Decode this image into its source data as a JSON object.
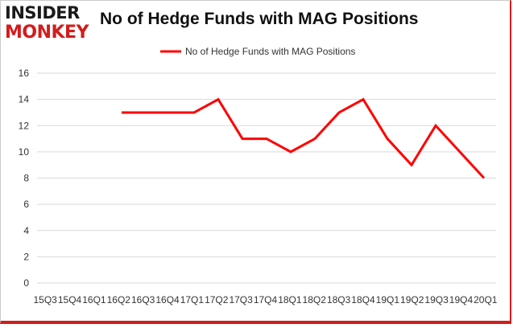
{
  "brand": {
    "line1": "INSIDER",
    "line2": "MONKEY"
  },
  "colors": {
    "series": "#ff0000",
    "grid": "#d9d9d9",
    "brand_red": "#d31c1c"
  },
  "chart_data": {
    "type": "line",
    "title": "No of Hedge Funds with MAG Positions",
    "legend_position": "top",
    "grid": true,
    "ylim": [
      0,
      16
    ],
    "yticks": [
      0,
      2,
      4,
      6,
      8,
      10,
      12,
      14,
      16
    ],
    "categories": [
      "15Q3",
      "15Q4",
      "16Q1",
      "16Q2",
      "16Q3",
      "16Q4",
      "17Q1",
      "17Q2",
      "17Q3",
      "17Q4",
      "18Q1",
      "18Q2",
      "18Q3",
      "18Q4",
      "19Q1",
      "19Q2",
      "19Q3",
      "19Q4",
      "20Q1"
    ],
    "series": [
      {
        "name": "No of Hedge Funds with MAG Positions",
        "values": [
          null,
          null,
          null,
          13,
          13,
          13,
          13,
          14,
          11,
          11,
          10,
          11,
          13,
          14,
          11,
          9,
          12,
          10,
          8
        ]
      }
    ]
  }
}
